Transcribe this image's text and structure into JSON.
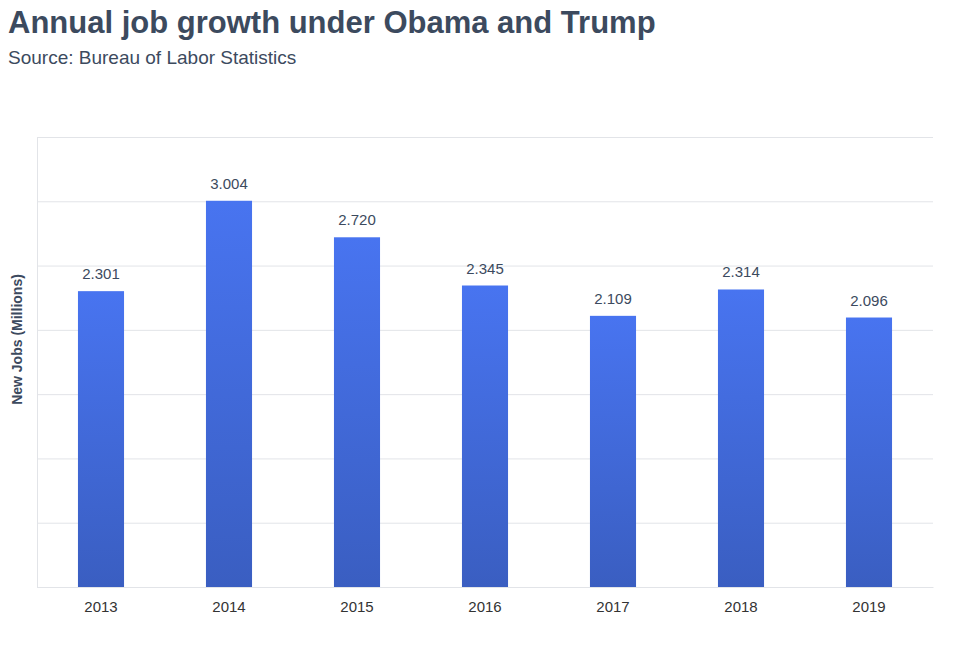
{
  "chart_data": {
    "type": "bar",
    "title": "Annual job growth under Obama and Trump",
    "subtitle": "Source: Bureau of Labor Statistics",
    "y_label": "New Jobs (Millions)",
    "categories": [
      "2013",
      "2014",
      "2015",
      "2016",
      "2017",
      "2018",
      "2019"
    ],
    "values": [
      2.301,
      3.004,
      2.72,
      2.345,
      2.109,
      2.314,
      2.096
    ],
    "value_labels": [
      "2.301",
      "3.004",
      "2.720",
      "2.345",
      "2.109",
      "2.314",
      "2.096"
    ],
    "color": "#3d63cc",
    "ylim": [
      0,
      3.5
    ],
    "yticks": [
      0,
      0.5,
      1,
      1.5,
      2,
      2.5,
      3,
      3.5
    ],
    "grid": true,
    "data_labels": true,
    "tick_labels": "x"
  }
}
